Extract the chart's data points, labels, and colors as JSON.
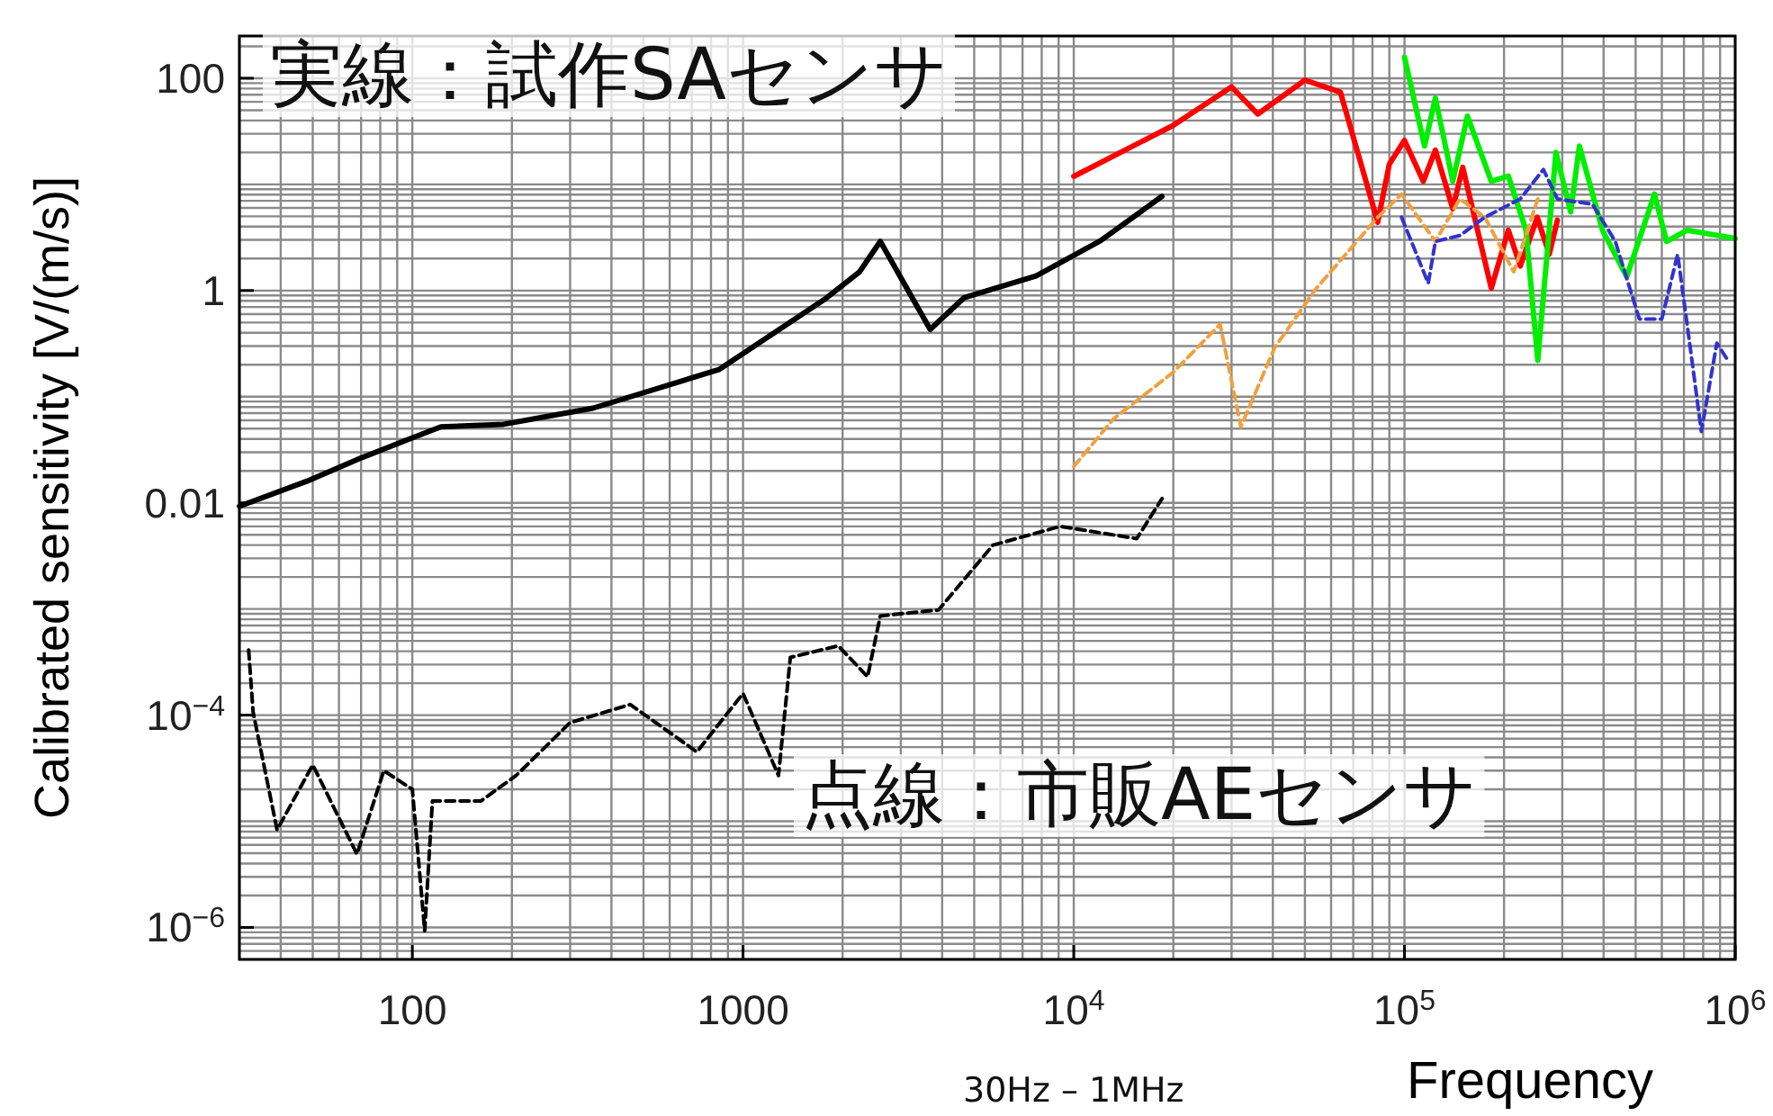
{
  "chart_data": {
    "type": "line",
    "xlabel": "Frequency",
    "ylabel": "Calibrated sensitivity [V/(m/s)]",
    "annotations": [
      "実線：試作SAセンサ",
      "点線：市販AEセンサ",
      "30Hz – 1MHz"
    ],
    "log": "xy",
    "grid": true,
    "xlim": [
      30,
      1000000
    ],
    "ylim": [
      5e-07,
      250
    ],
    "xticks": [
      100,
      1000,
      {
        "value": 10000,
        "label": "10$^{4}$"
      },
      {
        "value": 100000,
        "label": "10$^{5}$"
      },
      {
        "value": 1000000,
        "label": "10$^{6}$"
      }
    ],
    "yticks": [
      {
        "value": 1e-06,
        "label": "10$^{−6}$"
      },
      {
        "value": 0.0001,
        "label": "10$^{−4}$"
      },
      0.01,
      1,
      100
    ],
    "series": [
      {
        "color": "#000000",
        "line_style": "solid",
        "x": [
          30,
          48,
          69,
          100,
          122,
          189,
          352,
          845,
          1786,
          2250,
          2600,
          3680,
          4670,
          7690,
          12060,
          18460
        ],
        "values": [
          0.0093,
          0.016,
          0.026,
          0.041,
          0.052,
          0.055,
          0.078,
          0.18,
          0.85,
          1.5,
          2.9,
          0.43,
          0.86,
          1.37,
          2.95,
          7.7
        ]
      },
      {
        "color": "#ff0000",
        "line_style": "solid",
        "x": [
          10000,
          20000,
          30000,
          36000,
          50000,
          64000,
          83000,
          90000,
          100000,
          114000,
          124000,
          140000,
          150000,
          183000,
          206000,
          224000,
          252000,
          274000,
          290000
        ],
        "values": [
          11.9,
          36,
          83,
          46,
          96,
          74,
          4.4,
          15.5,
          26,
          10.7,
          21,
          5.9,
          14.5,
          1.05,
          3.7,
          1.7,
          4.9,
          2.2,
          4.6
        ]
      },
      {
        "color": "#00ee00",
        "line_style": "solid",
        "x": [
          100000,
          115000,
          124000,
          140000,
          155000,
          183000,
          206000,
          233000,
          253000,
          287000,
          318000,
          338000,
          397000,
          470000,
          570000,
          620000,
          715000,
          1000000
        ],
        "values": [
          158,
          23,
          65,
          10.7,
          44,
          10.7,
          12,
          3.7,
          0.22,
          20,
          5.5,
          23,
          3.7,
          1.35,
          8.1,
          2.9,
          3.7,
          3.1
        ]
      },
      {
        "color": "#f0a040",
        "line_style": "dashed",
        "x": [
          10000,
          13200,
          20000,
          27700,
          32000,
          40500,
          54000,
          83000,
          98000,
          124000,
          147000,
          175000,
          214000,
          253000
        ],
        "values": [
          0.022,
          0.062,
          0.17,
          0.48,
          0.052,
          0.29,
          1.04,
          4.9,
          8.1,
          2.9,
          7.3,
          4.9,
          1.5,
          7.3
        ]
      },
      {
        "color": "#3333cc",
        "line_style": "dashed",
        "x": [
          98000,
          118000,
          124000,
          147000,
          175000,
          224000,
          263000,
          290000,
          370000,
          434000,
          513000,
          600000,
          670000,
          740000,
          790000,
          880000,
          950000
        ],
        "values": [
          4.9,
          1.17,
          2.9,
          3.3,
          4.9,
          7.3,
          13.8,
          7.3,
          6.5,
          2.9,
          0.54,
          0.54,
          2.2,
          0.22,
          0.047,
          0.32,
          0.22
        ]
      },
      {
        "color": "#000000",
        "line_style": "dashed",
        "x": [
          32,
          33,
          39,
          50,
          68,
          82,
          100,
          109,
          115,
          161,
          206,
          300,
          456,
          725,
          1000,
          1280,
          1390,
          1940,
          2380,
          2600,
          3900,
          5700,
          9100,
          15500,
          18500
        ],
        "values": [
          0.00041,
          0.000107,
          8.3e-06,
          3.4e-05,
          4.9e-06,
          3e-05,
          2e-05,
          9.3e-07,
          1.55e-05,
          1.55e-05,
          2.7e-05,
          8.5e-05,
          0.000126,
          4.5e-05,
          0.00016,
          2.7e-05,
          0.00035,
          0.00045,
          0.00023,
          0.00086,
          0.00098,
          0.004,
          0.006,
          0.0046,
          0.011
        ]
      }
    ]
  }
}
